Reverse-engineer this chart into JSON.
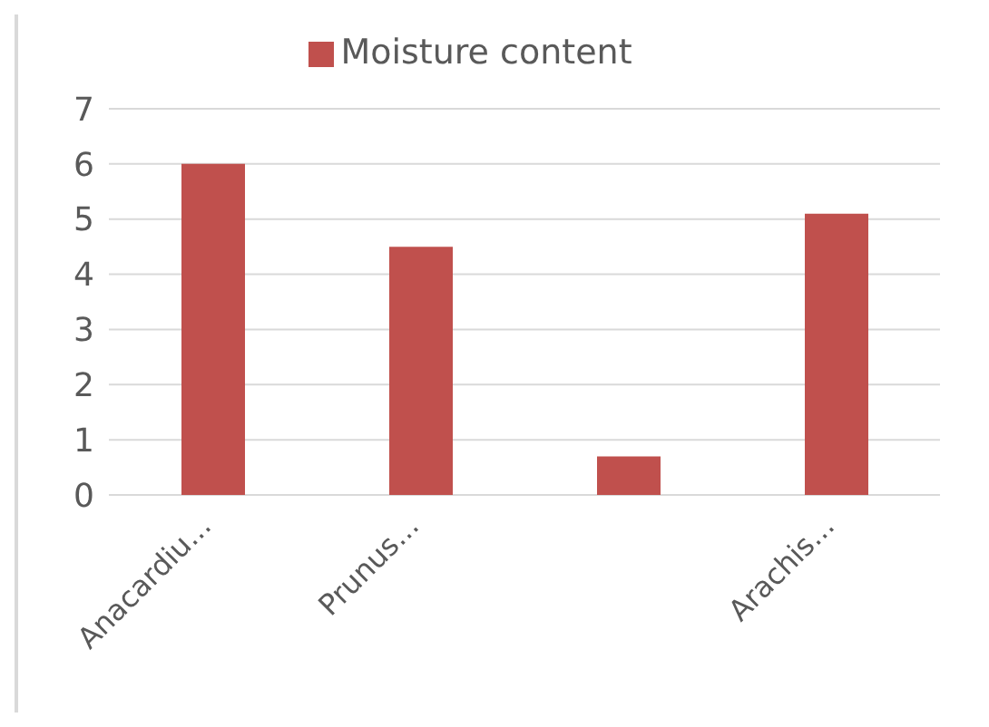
{
  "chart_data": {
    "type": "bar",
    "categories": [
      "Anacardiu...",
      "Prunus...",
      null,
      "Arachis..."
    ],
    "series": [
      {
        "name": "Moisture content",
        "color": "#c0504d",
        "values": [
          6.0,
          4.5,
          0.7,
          5.1
        ]
      }
    ],
    "ylim": [
      0,
      7
    ],
    "yticks": [
      0,
      1,
      2,
      3,
      4,
      5,
      6,
      7
    ],
    "grid": "y",
    "legend": "top"
  }
}
